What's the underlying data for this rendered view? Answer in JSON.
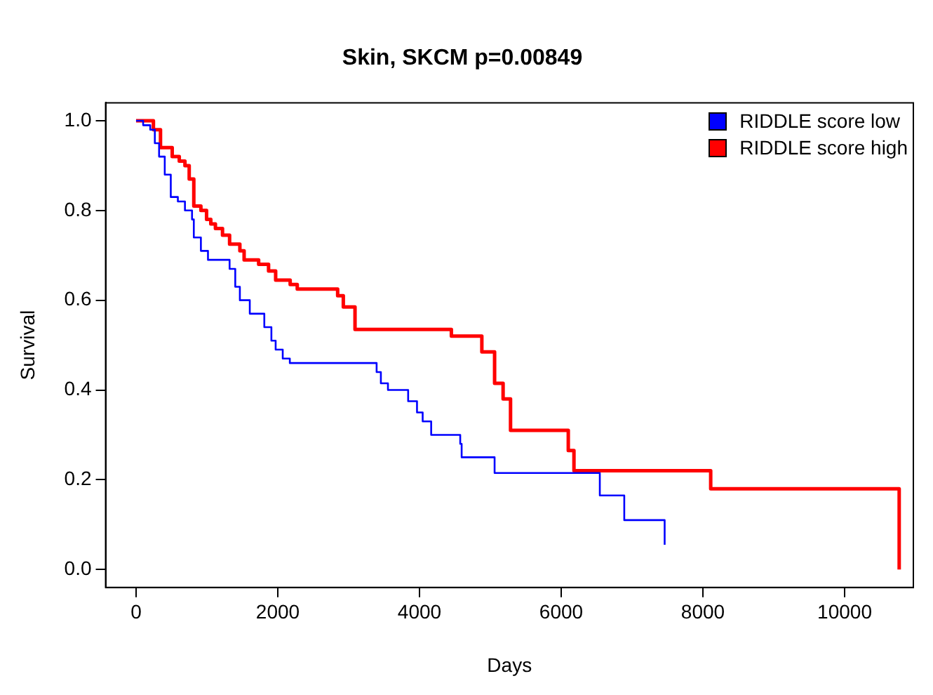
{
  "chart_data": {
    "type": "step",
    "title": "Skin, SKCM p=0.00849",
    "xlabel": "Days",
    "ylabel": "Survival",
    "xlim": [
      -430,
      10970
    ],
    "ylim": [
      -0.04,
      1.04
    ],
    "xticks": [
      0,
      2000,
      4000,
      6000,
      8000,
      10000
    ],
    "yticks": [
      {
        "value": 0,
        "label": "0.0"
      },
      {
        "value": 0.2,
        "label": "0.2"
      },
      {
        "value": 0.4,
        "label": "0.4"
      },
      {
        "value": 0.6,
        "label": "0.6"
      },
      {
        "value": 0.8,
        "label": "0.8"
      },
      {
        "value": 1,
        "label": "1.0"
      }
    ],
    "grid": false,
    "legend": "top right",
    "series": [
      {
        "name": "RIDDLE score low",
        "color": "#0000ff",
        "x": [
          0,
          100,
          200,
          265,
          325,
          405,
          490,
          590,
          690,
          790,
          815,
          915,
          1015,
          1320,
          1400,
          1465,
          1605,
          1810,
          1910,
          1970,
          2070,
          2170,
          3395,
          3455,
          3555,
          3840,
          3965,
          4045,
          4165,
          4575,
          4595,
          5060,
          6545,
          6890,
          7460
        ],
        "values": [
          1,
          0.99,
          0.98,
          0.95,
          0.92,
          0.88,
          0.83,
          0.82,
          0.8,
          0.78,
          0.74,
          0.71,
          0.69,
          0.67,
          0.63,
          0.6,
          0.57,
          0.54,
          0.51,
          0.49,
          0.47,
          0.46,
          0.44,
          0.415,
          0.4,
          0.375,
          0.35,
          0.33,
          0.3,
          0.28,
          0.25,
          0.215,
          0.165,
          0.11,
          0.055
        ]
      },
      {
        "name": "RIDDLE score high",
        "color": "#ff0000",
        "x": [
          0,
          245,
          345,
          510,
          610,
          690,
          750,
          815,
          915,
          995,
          1055,
          1120,
          1220,
          1320,
          1465,
          1525,
          1730,
          1870,
          1970,
          2175,
          2275,
          2845,
          2925,
          3090,
          4450,
          4880,
          5060,
          5180,
          5285,
          6100,
          6180,
          8110,
          10770
        ],
        "values": [
          1,
          0.98,
          0.94,
          0.92,
          0.91,
          0.9,
          0.87,
          0.81,
          0.8,
          0.78,
          0.77,
          0.76,
          0.745,
          0.725,
          0.71,
          0.69,
          0.68,
          0.665,
          0.645,
          0.635,
          0.625,
          0.61,
          0.585,
          0.535,
          0.52,
          0.485,
          0.415,
          0.38,
          0.31,
          0.265,
          0.22,
          0.18,
          0
        ]
      }
    ]
  }
}
